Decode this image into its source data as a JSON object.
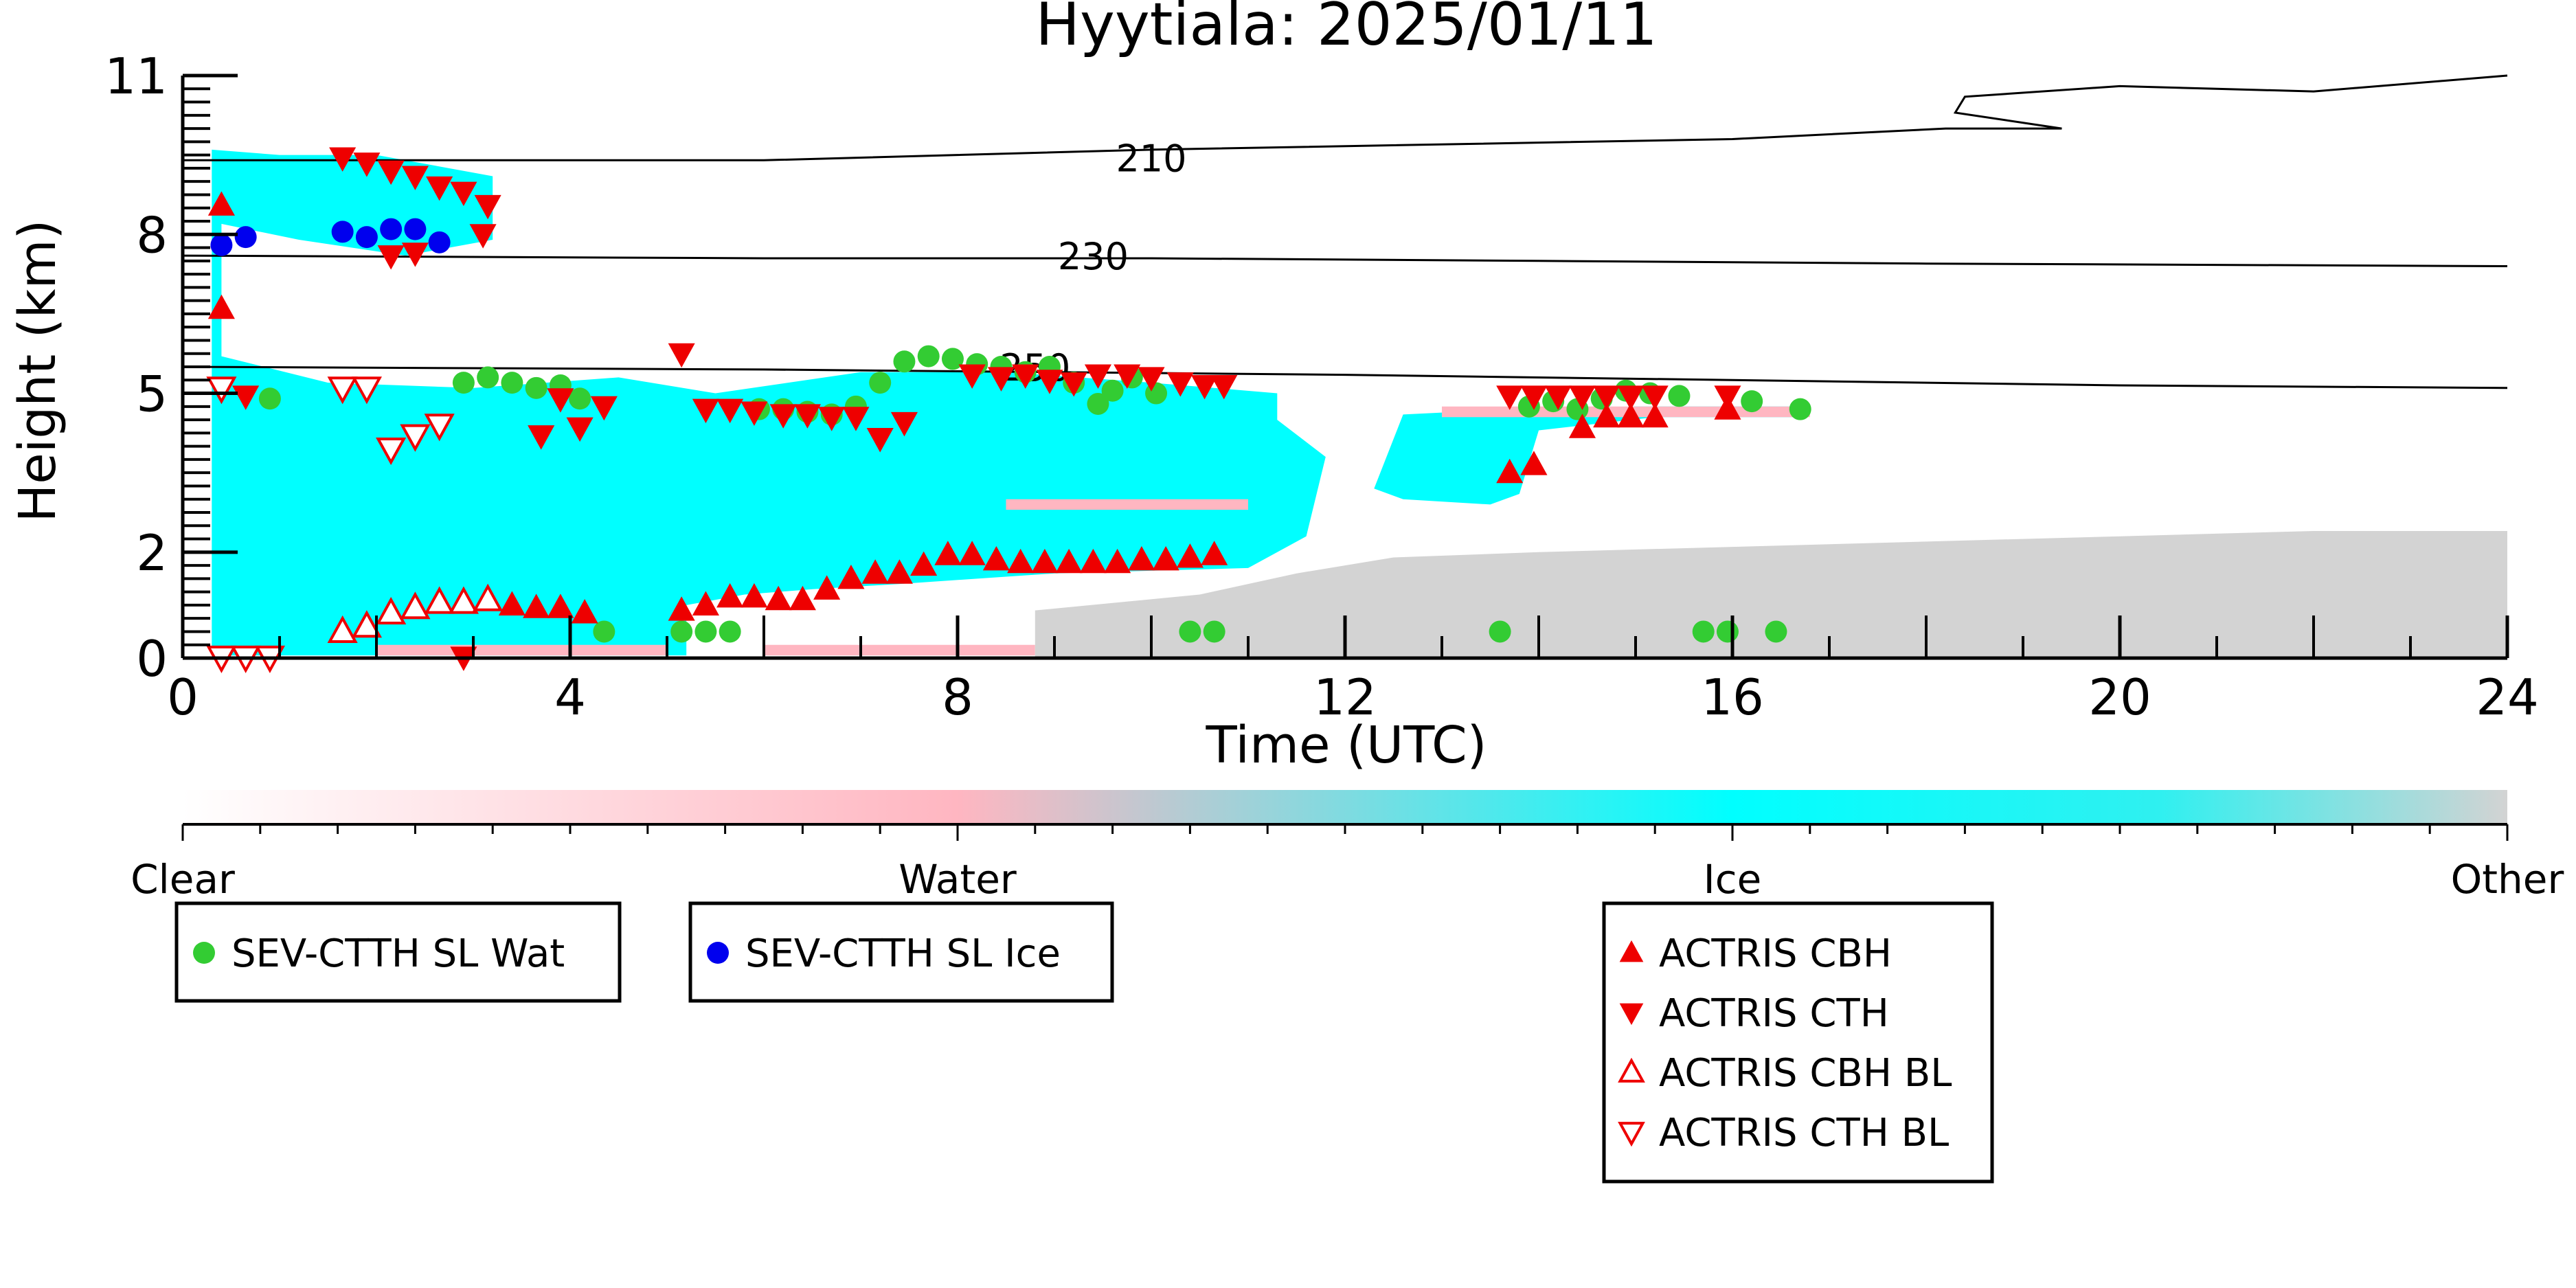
{
  "chart_data": {
    "type": "scatter",
    "title": "Hyytiala: 2025/01/11",
    "xlabel": "Time (UTC)",
    "ylabel": "Height (km)",
    "xlim": [
      0,
      24
    ],
    "ylim": [
      0,
      11
    ],
    "x_ticks": [
      0,
      4,
      8,
      12,
      16,
      20,
      24
    ],
    "y_ticks": [
      0,
      2,
      5,
      8,
      11
    ],
    "y_tick_labels": [
      "0",
      "2",
      "5",
      "8",
      "11"
    ],
    "colorbar": {
      "labels": [
        "Clear",
        "Water",
        "Ice",
        "Other"
      ],
      "colors": [
        "#ffffff",
        "#ffb6c1",
        "#00ffff",
        "#d3d3d3"
      ]
    },
    "contours": [
      {
        "label": "210",
        "points": [
          [
            0,
            9.4
          ],
          [
            6,
            9.4
          ],
          [
            10,
            9.6
          ],
          [
            16,
            9.8
          ],
          [
            18.2,
            10.0
          ],
          [
            19.4,
            10.0
          ],
          [
            18.3,
            10.3
          ],
          [
            18.4,
            10.6
          ],
          [
            20,
            10.8
          ],
          [
            22,
            10.7
          ],
          [
            24,
            11.0
          ]
        ]
      },
      {
        "label": "230",
        "points": [
          [
            0,
            7.6
          ],
          [
            6,
            7.55
          ],
          [
            10,
            7.55
          ],
          [
            14,
            7.5
          ],
          [
            18,
            7.45
          ],
          [
            24,
            7.4
          ]
        ]
      },
      {
        "label": "250",
        "points": [
          [
            0,
            5.5
          ],
          [
            6,
            5.45
          ],
          [
            9,
            5.4
          ],
          [
            12,
            5.35
          ],
          [
            16,
            5.25
          ],
          [
            20,
            5.15
          ],
          [
            24,
            5.1
          ]
        ]
      }
    ],
    "regions": [
      {
        "class": "Ice",
        "color": "#00ffff",
        "polygon": [
          [
            0.3,
            0.05
          ],
          [
            0.3,
            9.6
          ],
          [
            1.0,
            9.5
          ],
          [
            2.0,
            9.5
          ],
          [
            3.2,
            9.1
          ],
          [
            3.2,
            7.9
          ],
          [
            2.3,
            7.6
          ],
          [
            1.2,
            7.9
          ],
          [
            0.4,
            8.2
          ],
          [
            0.4,
            5.7
          ],
          [
            1.5,
            5.2
          ],
          [
            3.0,
            5.1
          ],
          [
            4.5,
            5.3
          ],
          [
            5.5,
            5.0
          ],
          [
            7.0,
            5.4
          ],
          [
            8.5,
            5.4
          ],
          [
            10.0,
            5.2
          ],
          [
            11.3,
            5.0
          ],
          [
            11.3,
            4.5
          ],
          [
            11.8,
            3.8
          ],
          [
            11.6,
            2.3
          ],
          [
            11.0,
            1.7
          ],
          [
            9.0,
            1.6
          ],
          [
            7.4,
            1.4
          ],
          [
            6.5,
            1.3
          ],
          [
            5.8,
            1.2
          ],
          [
            5.2,
            1.0
          ],
          [
            5.2,
            0.05
          ]
        ]
      },
      {
        "class": "Ice",
        "color": "#00ffff",
        "polygon": [
          [
            12.3,
            3.2
          ],
          [
            12.6,
            4.6
          ],
          [
            13.7,
            4.7
          ],
          [
            15.0,
            4.75
          ],
          [
            16.7,
            4.75
          ],
          [
            16.7,
            4.55
          ],
          [
            15.2,
            4.55
          ],
          [
            14.0,
            4.3
          ],
          [
            13.8,
            3.1
          ],
          [
            13.5,
            2.9
          ],
          [
            12.6,
            3.0
          ]
        ]
      },
      {
        "class": "Water",
        "color": "#ffb6c1",
        "polygon": [
          [
            2.0,
            0.05
          ],
          [
            2.0,
            0.25
          ],
          [
            5.0,
            0.25
          ],
          [
            5.0,
            0.05
          ]
        ]
      },
      {
        "class": "Water",
        "color": "#ffb6c1",
        "polygon": [
          [
            6.0,
            0.05
          ],
          [
            6.0,
            0.25
          ],
          [
            8.8,
            0.25
          ],
          [
            8.8,
            0.05
          ]
        ]
      },
      {
        "class": "Water",
        "color": "#ffb6c1",
        "polygon": [
          [
            8.5,
            2.8
          ],
          [
            8.5,
            3.0
          ],
          [
            11.0,
            3.0
          ],
          [
            11.0,
            2.8
          ]
        ]
      },
      {
        "class": "Water",
        "color": "#ffb6c1",
        "polygon": [
          [
            13.0,
            4.55
          ],
          [
            13.0,
            4.75
          ],
          [
            16.8,
            4.75
          ],
          [
            16.8,
            4.55
          ]
        ]
      },
      {
        "class": "Other",
        "color": "#d3d3d3",
        "polygon": [
          [
            8.8,
            0.02
          ],
          [
            8.8,
            0.9
          ],
          [
            10.5,
            1.2
          ],
          [
            11.5,
            1.6
          ],
          [
            12.5,
            1.9
          ],
          [
            14,
            2.0
          ],
          [
            16,
            2.1
          ],
          [
            18,
            2.2
          ],
          [
            20,
            2.3
          ],
          [
            22,
            2.4
          ],
          [
            24,
            2.4
          ],
          [
            24,
            0.02
          ]
        ]
      }
    ],
    "series": [
      {
        "name": "SEV-CTTH SL Wat",
        "marker": "circle",
        "color": "#33cc33",
        "x": [
          0.9,
          2.9,
          3.15,
          3.4,
          3.65,
          3.9,
          4.1,
          4.35,
          5.15,
          5.4,
          5.65,
          5.95,
          6.2,
          6.45,
          6.7,
          6.95,
          7.2,
          7.45,
          7.7,
          7.95,
          8.2,
          8.45,
          8.7,
          8.95,
          9.2,
          9.45,
          9.6,
          9.8,
          10.05,
          10.4,
          10.65,
          13.6,
          13.9,
          14.15,
          14.4,
          14.65,
          14.9,
          15.15,
          15.45,
          15.7,
          15.95,
          16.2,
          16.45,
          16.7
        ],
        "y": [
          4.9,
          5.2,
          5.3,
          5.2,
          5.1,
          5.15,
          4.9,
          0.5,
          0.5,
          0.5,
          0.5,
          4.7,
          4.7,
          4.65,
          4.6,
          4.75,
          5.2,
          5.6,
          5.7,
          5.65,
          5.55,
          5.5,
          5.4,
          5.5,
          5.2,
          4.8,
          5.05,
          5.3,
          5.0,
          0.5,
          0.5,
          0.5,
          4.75,
          4.85,
          4.7,
          4.9,
          5.05,
          5.0,
          4.95,
          0.5,
          0.5,
          4.85,
          0.5,
          4.7
        ]
      },
      {
        "name": "SEV-CTTH SL Ice",
        "marker": "circle",
        "color": "#0000ee",
        "x": [
          0.4,
          0.65,
          1.65,
          1.9,
          2.15,
          2.4,
          2.65
        ],
        "y": [
          7.8,
          7.95,
          8.05,
          7.95,
          8.1,
          8.1,
          7.85
        ]
      },
      {
        "name": "ACTRIS CBH",
        "marker": "triangle-up",
        "color": "#ee0000",
        "filled": true,
        "x": [
          0.4,
          5.15,
          5.4,
          5.65,
          5.9,
          6.15,
          6.4,
          6.65,
          6.9,
          7.15,
          7.4,
          7.65,
          7.9,
          8.15,
          8.4,
          8.65,
          8.9,
          9.15,
          9.4,
          9.65,
          9.9,
          10.15,
          10.4,
          10.65,
          13.7,
          13.95,
          14.45,
          14.7,
          14.95,
          15.2,
          15.95,
          0.4,
          3.15,
          3.4,
          3.65,
          3.9,
          4.15
        ],
        "y": [
          6.6,
          0.9,
          1.0,
          1.15,
          1.15,
          1.1,
          1.1,
          1.3,
          1.5,
          1.6,
          1.6,
          1.75,
          1.95,
          1.95,
          1.85,
          1.8,
          1.8,
          1.8,
          1.8,
          1.8,
          1.85,
          1.85,
          1.9,
          1.95,
          3.5,
          3.65,
          4.35,
          4.55,
          4.55,
          4.55,
          4.7,
          8.55,
          1.1,
          1.0,
          0.95,
          0.95,
          0.85
        ]
      },
      {
        "name": "ACTRIS CTH",
        "marker": "triangle-down",
        "color": "#ee0000",
        "filled": true,
        "x": [
          0.65,
          1.65,
          1.9,
          2.15,
          2.4,
          2.65,
          2.9,
          3.15,
          3.7,
          4.1,
          5.15,
          5.4,
          5.65,
          5.9,
          6.2,
          6.45,
          6.7,
          6.95,
          7.2,
          7.45,
          8.15,
          8.45,
          8.7,
          8.95,
          9.2,
          9.45,
          9.75,
          10.0,
          10.3,
          10.55,
          10.75,
          13.7,
          13.95,
          14.2,
          14.45,
          14.7,
          14.95,
          15.2,
          15.95,
          3.9,
          4.35,
          0.4,
          2.9,
          3.1,
          2.15,
          2.4
        ],
        "y": [
          4.95,
          9.45,
          9.35,
          9.2,
          9.1,
          8.9,
          8.8,
          8.55,
          4.2,
          4.35,
          5.75,
          4.7,
          4.7,
          4.65,
          4.6,
          4.6,
          4.55,
          4.55,
          4.15,
          4.45,
          5.35,
          5.3,
          5.35,
          5.25,
          5.2,
          5.35,
          5.35,
          5.3,
          5.2,
          5.15,
          5.15,
          4.95,
          4.95,
          4.95,
          4.95,
          4.95,
          4.95,
          4.95,
          4.95,
          4.9,
          4.75,
          0.02,
          0.02,
          8.0,
          7.6,
          7.65
        ]
      },
      {
        "name": "ACTRIS CBH BL",
        "marker": "triangle-up",
        "color": "#ee0000",
        "filled": false,
        "x": [
          1.65,
          1.9,
          2.15,
          2.4,
          2.65,
          2.9,
          3.15
        ],
        "y": [
          0.5,
          0.6,
          0.85,
          0.95,
          1.05,
          1.05,
          1.1
        ]
      },
      {
        "name": "ACTRIS CTH BL",
        "marker": "triangle-down",
        "color": "#ee0000",
        "filled": false,
        "x": [
          0.4,
          0.65,
          0.9,
          1.65,
          1.9,
          2.15,
          2.4,
          2.65,
          0.4
        ],
        "y": [
          5.1,
          0.02,
          0.02,
          5.1,
          5.1,
          3.95,
          4.2,
          4.4,
          0.02
        ]
      }
    ]
  },
  "legends": [
    {
      "entries": [
        "SEV-CTTH SL Wat"
      ]
    },
    {
      "entries": [
        "SEV-CTTH SL Ice"
      ]
    },
    {
      "entries": [
        "ACTRIS CBH",
        "ACTRIS CTH",
        "ACTRIS CBH BL",
        "ACTRIS CTH BL"
      ]
    }
  ]
}
